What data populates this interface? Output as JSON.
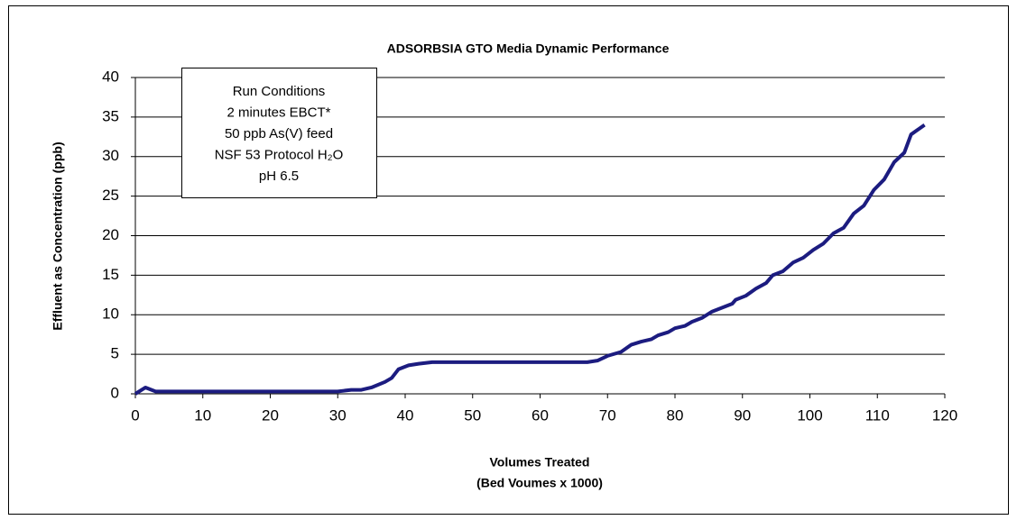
{
  "chart_data": {
    "type": "line",
    "title": "ADSORBSIA GTO Media Dynamic Performance",
    "y_label": "Effluent as Concentration (ppb)",
    "x_label": [
      "Volumes Treated",
      "(Bed Voumes x 1000)"
    ],
    "annotation": [
      "Run Conditions",
      "2 minutes EBCT*",
      "50 ppb As(V) feed",
      "NSF 53 Protocol H₂O",
      "pH 6.5"
    ],
    "x": [
      0,
      1.5,
      3,
      10,
      20,
      30,
      32,
      33.5,
      35,
      37,
      38,
      39,
      40.5,
      42,
      44,
      50,
      60,
      67,
      68.5,
      70,
      72,
      73.5,
      75,
      76.5,
      77.5,
      79,
      80,
      81.5,
      82.5,
      84,
      85.5,
      87,
      88.5,
      89,
      90.5,
      92,
      93.5,
      94.5,
      96,
      97.5,
      99,
      100.5,
      102,
      103.5,
      105,
      106.5,
      108,
      109.5,
      111,
      112.5,
      114,
      115,
      117
    ],
    "series": [
      {
        "color": "#1c1c80",
        "values": [
          0,
          0.8,
          0.3,
          0.3,
          0.3,
          0.3,
          0.5,
          0.5,
          0.8,
          1.5,
          2,
          3.1,
          3.6,
          3.8,
          4,
          4,
          4,
          4,
          4.2,
          4.8,
          5.3,
          6.2,
          6.6,
          6.9,
          7.4,
          7.8,
          8.3,
          8.6,
          9.1,
          9.6,
          10.4,
          10.9,
          11.4,
          11.9,
          12.4,
          13.3,
          14,
          15,
          15.5,
          16.6,
          17.2,
          18.2,
          19,
          20.3,
          21,
          22.8,
          23.8,
          25.8,
          27.1,
          29.3,
          30.5,
          32.8,
          34
        ]
      }
    ],
    "xlim": [
      0,
      120
    ],
    "xticks": [
      0,
      10,
      20,
      30,
      40,
      50,
      60,
      70,
      80,
      90,
      100,
      110,
      120
    ],
    "ylim": [
      0,
      40
    ],
    "yticks": [
      0,
      5,
      10,
      15,
      20,
      25,
      30,
      35,
      40
    ],
    "grid": true
  }
}
